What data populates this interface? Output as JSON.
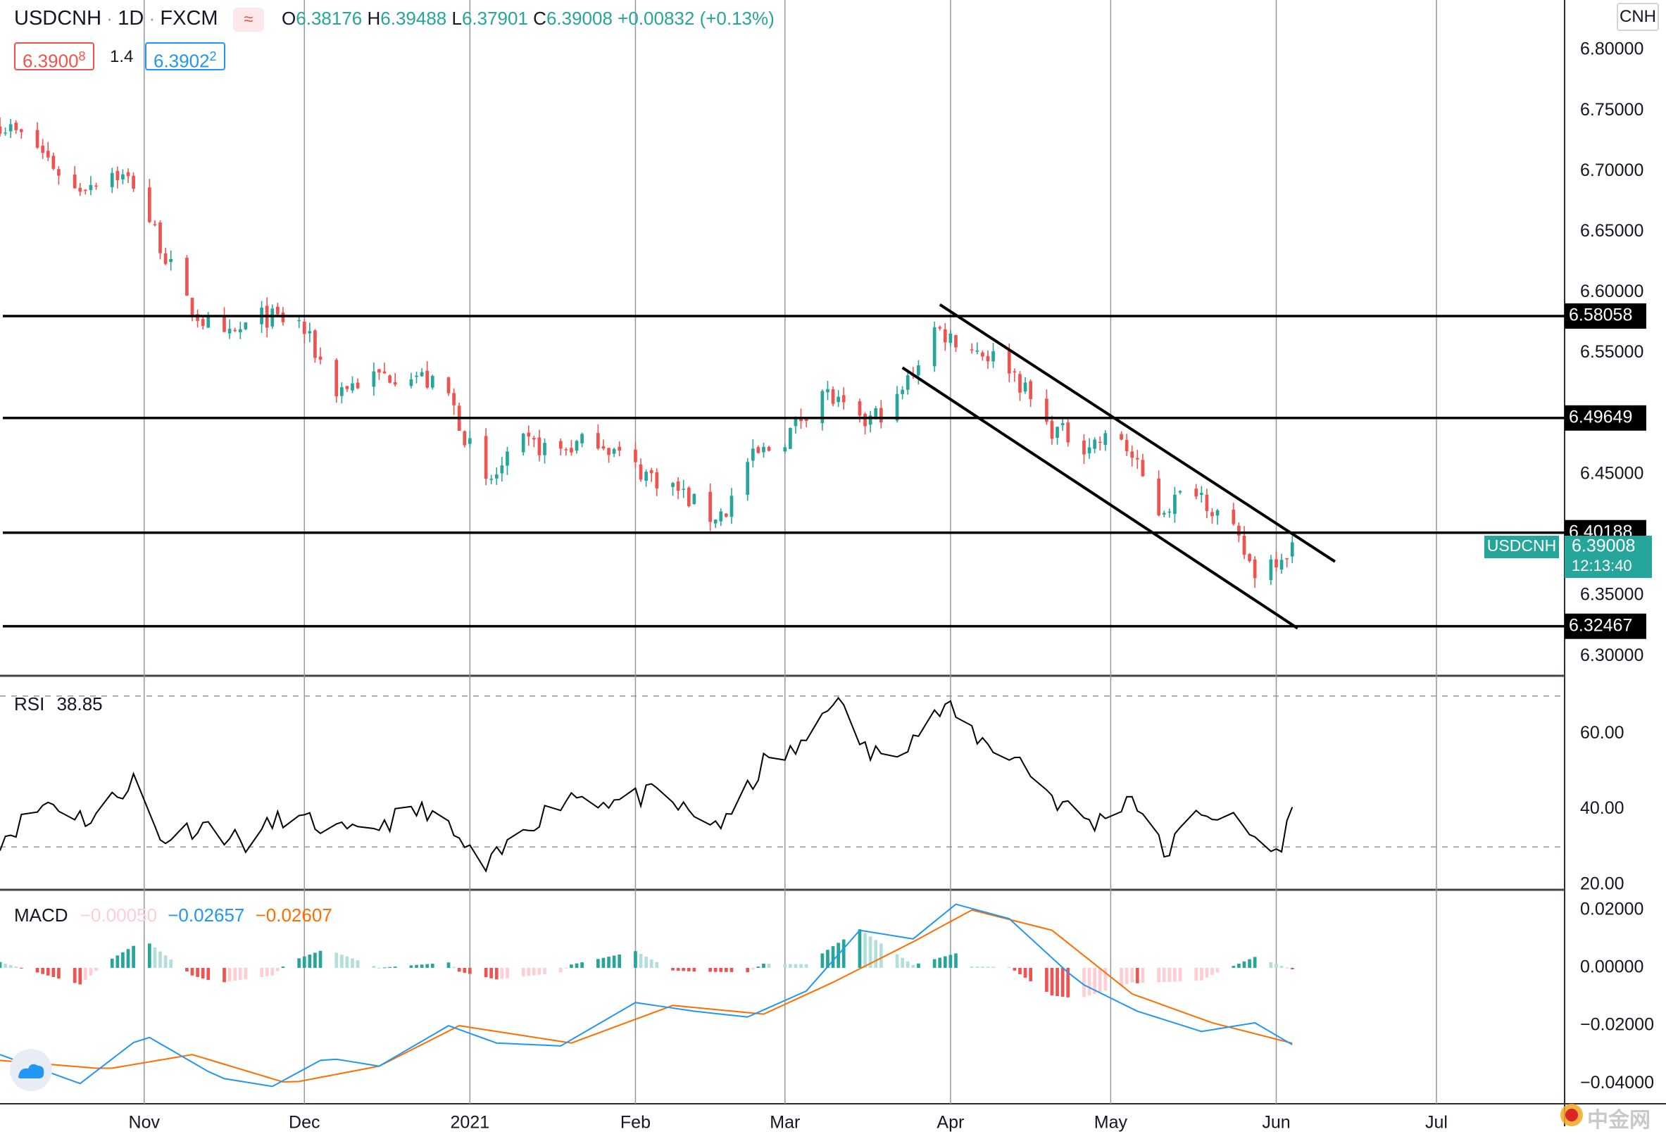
{
  "symbol": {
    "name": "USDCNH",
    "interval": "1D",
    "source": "FXCM",
    "open_label": "O",
    "open": "6.38176",
    "high_label": "H",
    "high": "6.39488",
    "low_label": "L",
    "low": "6.37901",
    "close_label": "C",
    "close": "6.39008",
    "change": "+0.00832 (+0.13%)",
    "sell_price": "6.3900",
    "sell_price_small": "8",
    "spread": "1.4",
    "buy_price": "6.3902",
    "buy_price_small": "2",
    "currency_badge": "CNH"
  },
  "colors": {
    "up": "#26a69a",
    "down": "#ef5350",
    "macd_line": "#2196f3",
    "signal_line": "#ff6d00",
    "hist_pos_strong": "#26a69a",
    "hist_pos_weak": "#b2dfdb",
    "hist_neg_strong": "#ef5350",
    "hist_neg_weak": "#ffcdd2",
    "price_label_bg": "#26a69a",
    "level_label_bg": "#000000"
  },
  "chart_data": [
    {
      "type": "candlestick",
      "pane": "price",
      "y_ticks": [
        "6.80000",
        "6.75000",
        "6.70000",
        "6.65000",
        "6.60000",
        "6.55000",
        "6.45000",
        "6.35000",
        "6.30000"
      ],
      "ylim": [
        6.285,
        6.825
      ],
      "x_ticks": [
        "Nov",
        "Dec",
        "2021",
        "Feb",
        "Mar",
        "Apr",
        "May",
        "Jun",
        "Jul"
      ],
      "x_range": [
        "2020-10-05",
        "2021-07-25"
      ],
      "levels": [
        {
          "value": 6.58058,
          "label": "6.58058"
        },
        {
          "value": 6.49649,
          "label": "6.49649"
        },
        {
          "value": 6.40188,
          "label": "6.40188"
        },
        {
          "value": 6.32467,
          "label": "6.32467"
        }
      ],
      "channel": [
        {
          "from": [
            "2021-03-30",
            6.59
          ],
          "to": [
            "2021-06-12",
            6.378
          ]
        },
        {
          "from": [
            "2021-03-23",
            6.538
          ],
          "to": [
            "2021-06-05",
            6.323
          ]
        }
      ],
      "last_price": {
        "symbol": "USDCNH",
        "value": "6.39008",
        "countdown": "12:13:40"
      },
      "anchors": [
        {
          "date": "2020-10-05",
          "close": 6.74
        },
        {
          "date": "2020-10-12",
          "close": 6.72
        },
        {
          "date": "2020-10-19",
          "close": 6.685
        },
        {
          "date": "2020-10-26",
          "close": 6.7
        },
        {
          "date": "2020-10-30",
          "close": 6.69
        },
        {
          "date": "2020-11-04",
          "close": 6.64
        },
        {
          "date": "2020-11-09",
          "close": 6.59
        },
        {
          "date": "2020-11-16",
          "close": 6.56
        },
        {
          "date": "2020-11-23",
          "close": 6.58
        },
        {
          "date": "2020-11-30",
          "close": 6.575
        },
        {
          "date": "2020-12-07",
          "close": 6.52
        },
        {
          "date": "2020-12-14",
          "close": 6.53
        },
        {
          "date": "2020-12-21",
          "close": 6.535
        },
        {
          "date": "2020-12-28",
          "close": 6.515
        },
        {
          "date": "2021-01-04",
          "close": 6.44
        },
        {
          "date": "2021-01-11",
          "close": 6.475
        },
        {
          "date": "2021-01-18",
          "close": 6.47
        },
        {
          "date": "2021-01-25",
          "close": 6.48
        },
        {
          "date": "2021-02-01",
          "close": 6.455
        },
        {
          "date": "2021-02-08",
          "close": 6.44
        },
        {
          "date": "2021-02-15",
          "close": 6.415
        },
        {
          "date": "2021-02-18",
          "close": 6.42
        },
        {
          "date": "2021-02-22",
          "close": 6.46
        },
        {
          "date": "2021-03-01",
          "close": 6.48
        },
        {
          "date": "2021-03-08",
          "close": 6.52
        },
        {
          "date": "2021-03-15",
          "close": 6.49
        },
        {
          "date": "2021-03-22",
          "close": 6.51
        },
        {
          "date": "2021-03-29",
          "close": 6.57
        },
        {
          "date": "2021-04-05",
          "close": 6.555
        },
        {
          "date": "2021-04-12",
          "close": 6.54
        },
        {
          "date": "2021-04-19",
          "close": 6.49
        },
        {
          "date": "2021-04-26",
          "close": 6.475
        },
        {
          "date": "2021-05-03",
          "close": 6.48
        },
        {
          "date": "2021-05-10",
          "close": 6.42
        },
        {
          "date": "2021-05-17",
          "close": 6.44
        },
        {
          "date": "2021-05-24",
          "close": 6.4
        },
        {
          "date": "2021-05-28",
          "close": 6.37
        },
        {
          "date": "2021-06-01",
          "close": 6.382
        },
        {
          "date": "2021-06-04",
          "close": 6.39
        }
      ]
    },
    {
      "type": "line",
      "pane": "rsi",
      "label": "RSI",
      "current": "38.85",
      "y_ticks": [
        "60.00",
        "40.00",
        "20.00"
      ],
      "ylim": [
        19,
        75
      ],
      "bands": [
        30,
        70
      ],
      "values": [
        [
          "2020-10-05",
          32
        ],
        [
          "2020-10-14",
          42
        ],
        [
          "2020-10-22",
          37
        ],
        [
          "2020-10-30",
          48
        ],
        [
          "2020-11-04",
          32
        ],
        [
          "2020-11-12",
          36
        ],
        [
          "2020-11-20",
          31
        ],
        [
          "2020-11-27",
          38
        ],
        [
          "2020-12-03",
          36
        ],
        [
          "2020-12-10",
          33
        ],
        [
          "2020-12-17",
          37
        ],
        [
          "2020-12-24",
          40
        ],
        [
          "2021-01-04",
          24
        ],
        [
          "2021-01-12",
          36
        ],
        [
          "2021-01-20",
          44
        ],
        [
          "2021-01-28",
          42
        ],
        [
          "2021-02-05",
          44
        ],
        [
          "2021-02-12",
          38
        ],
        [
          "2021-02-18",
          36
        ],
        [
          "2021-02-25",
          52
        ],
        [
          "2021-03-04",
          56
        ],
        [
          "2021-03-10",
          70
        ],
        [
          "2021-03-17",
          54
        ],
        [
          "2021-03-24",
          58
        ],
        [
          "2021-03-31",
          67
        ],
        [
          "2021-04-07",
          58
        ],
        [
          "2021-04-14",
          53
        ],
        [
          "2021-04-21",
          42
        ],
        [
          "2021-04-28",
          36
        ],
        [
          "2021-05-05",
          44
        ],
        [
          "2021-05-11",
          28
        ],
        [
          "2021-05-18",
          40
        ],
        [
          "2021-05-25",
          36
        ],
        [
          "2021-06-01",
          28
        ],
        [
          "2021-06-04",
          38.85
        ]
      ]
    },
    {
      "type": "line",
      "pane": "macd",
      "label": "MACD",
      "readouts": [
        "−0.00050",
        "−0.02657",
        "−0.02607"
      ],
      "y_ticks": [
        "0.02000",
        "0.00000",
        "−0.02000",
        "−0.04000"
      ],
      "ylim": [
        -0.047,
        0.027
      ],
      "series": [
        {
          "values": [
            [
              "2020-10-05",
              -0.03
            ],
            [
              "2020-10-20",
              -0.04
            ],
            [
              "2020-11-01",
              -0.023
            ],
            [
              "2020-11-15",
              -0.038
            ],
            [
              "2020-11-25",
              -0.041
            ],
            [
              "2020-12-05",
              -0.031
            ],
            [
              "2020-12-15",
              -0.034
            ],
            [
              "2020-12-28",
              -0.02
            ],
            [
              "2021-01-06",
              -0.026
            ],
            [
              "2021-01-18",
              -0.027
            ],
            [
              "2021-02-01",
              -0.012
            ],
            [
              "2021-02-12",
              -0.015
            ],
            [
              "2021-02-22",
              -0.017
            ],
            [
              "2021-03-05",
              -0.008
            ],
            [
              "2021-03-15",
              0.013
            ],
            [
              "2021-03-25",
              0.01
            ],
            [
              "2021-04-02",
              0.022
            ],
            [
              "2021-04-12",
              0.017
            ],
            [
              "2021-04-25",
              -0.005
            ],
            [
              "2021-05-06",
              -0.015
            ],
            [
              "2021-05-18",
              -0.022
            ],
            [
              "2021-05-28",
              -0.019
            ],
            [
              "2021-06-04",
              -0.02657
            ]
          ]
        },
        {
          "values": [
            [
              "2020-10-05",
              -0.032
            ],
            [
              "2020-10-25",
              -0.035
            ],
            [
              "2020-11-10",
              -0.03
            ],
            [
              "2020-11-28",
              -0.04
            ],
            [
              "2020-12-15",
              -0.034
            ],
            [
              "2020-12-30",
              -0.02
            ],
            [
              "2021-01-20",
              -0.026
            ],
            [
              "2021-02-08",
              -0.013
            ],
            [
              "2021-02-25",
              -0.016
            ],
            [
              "2021-03-10",
              -0.005
            ],
            [
              "2021-03-25",
              0.009
            ],
            [
              "2021-04-05",
              0.02
            ],
            [
              "2021-04-20",
              0.013
            ],
            [
              "2021-05-05",
              -0.009
            ],
            [
              "2021-05-20",
              -0.019
            ],
            [
              "2021-06-04",
              -0.02607
            ]
          ]
        }
      ]
    }
  ],
  "watermark": "中金网"
}
